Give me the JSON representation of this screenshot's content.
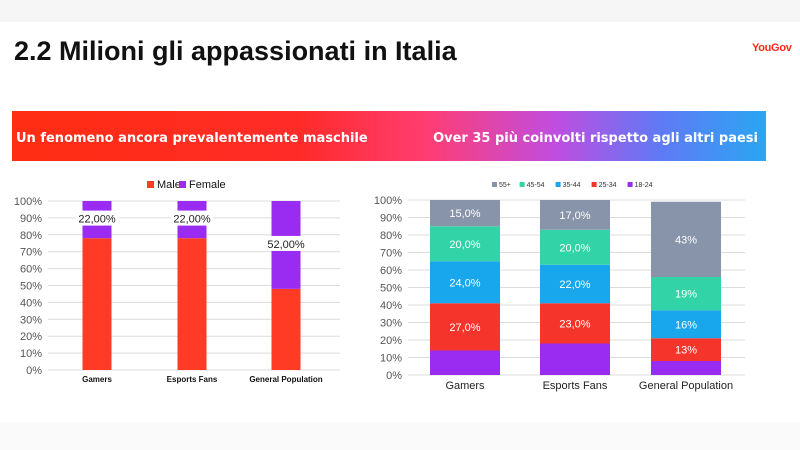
{
  "page": {
    "title": "2.2 Milioni gli appassionati in Italia",
    "brand": "YouGov",
    "banner_left": "Un fenomeno ancora prevalentemente maschile",
    "banner_right": "Over 35 più coinvolti rispetto agli altri paesi"
  },
  "colors": {
    "male": "#ff3b26",
    "female": "#9a2cf2",
    "age_55": "#8894aa",
    "age_45": "#32d3a6",
    "age_35": "#18a6ec",
    "age_25": "#f5352c",
    "age_18": "#9a2cf2"
  },
  "chart_data": [
    {
      "type": "bar",
      "stacked": true,
      "categories": [
        "Gamers",
        "Esports Fans",
        "General Population"
      ],
      "series": [
        {
          "name": "Male",
          "values": [
            78,
            78,
            48
          ]
        },
        {
          "name": "Female",
          "values": [
            22,
            22,
            52
          ]
        }
      ],
      "data_labels": [
        "22,00%",
        "22,00%",
        "52,00%"
      ],
      "ylim": [
        0,
        100
      ],
      "yticks": [
        "0%",
        "10%",
        "20%",
        "30%",
        "40%",
        "50%",
        "60%",
        "70%",
        "80%",
        "90%",
        "100%"
      ],
      "legend": "top",
      "grid": true
    },
    {
      "type": "bar",
      "stacked": true,
      "categories": [
        "Gamers",
        "Esports Fans",
        "General Population"
      ],
      "series": [
        {
          "name": "18-24",
          "values": [
            14,
            18,
            8
          ],
          "labels": [
            "",
            "",
            ""
          ]
        },
        {
          "name": "25-34",
          "values": [
            27,
            23,
            13
          ],
          "labels": [
            "27,0%",
            "23,0%",
            "13%"
          ]
        },
        {
          "name": "35-44",
          "values": [
            24,
            22,
            16
          ],
          "labels": [
            "24,0%",
            "22,0%",
            "16%"
          ]
        },
        {
          "name": "45-54",
          "values": [
            20,
            20,
            19
          ],
          "labels": [
            "20,0%",
            "20,0%",
            "19%"
          ]
        },
        {
          "name": "55+",
          "values": [
            15,
            17,
            43
          ],
          "labels": [
            "15,0%",
            "17,0%",
            "43%"
          ]
        }
      ],
      "legend_order": [
        "55+",
        "45-54",
        "35-44",
        "25-34",
        "18-24"
      ],
      "ylim": [
        0,
        100
      ],
      "yticks": [
        "0%",
        "10%",
        "20%",
        "30%",
        "40%",
        "50%",
        "60%",
        "70%",
        "80%",
        "90%",
        "100%"
      ],
      "legend": "top",
      "grid": true
    }
  ]
}
